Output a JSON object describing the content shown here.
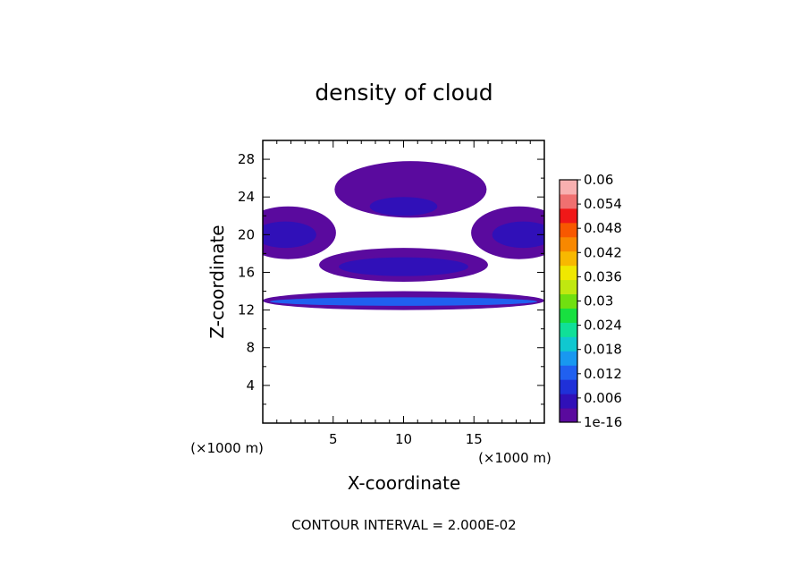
{
  "chart_data": {
    "type": "heatmap",
    "title": "density of cloud",
    "xlabel": "X-coordinate",
    "ylabel": "Z-coordinate",
    "x_unit": "(×1000 m)",
    "y_unit": "(×1000 m)",
    "xlim": [
      0,
      20
    ],
    "ylim": [
      0,
      30
    ],
    "x_ticks": [
      "5",
      "10",
      "15"
    ],
    "y_ticks": [
      "4",
      "8",
      "12",
      "16",
      "20",
      "24",
      "28"
    ],
    "footer": "CONTOUR INTERVAL = 2.000E-02",
    "colorbar": {
      "labels": [
        "0.06",
        "0.054",
        "0.048",
        "0.042",
        "0.036",
        "0.03",
        "0.024",
        "0.018",
        "0.012",
        "0.006",
        "1e-16"
      ],
      "colors": [
        "#5a0a9e",
        "#3010b8",
        "#1f30d8",
        "#2060f0",
        "#1898f0",
        "#10c8d0",
        "#10e098",
        "#18e040",
        "#70e010",
        "#c0e810",
        "#f0e800",
        "#f8b800",
        "#f88800",
        "#f85800",
        "#f01818",
        "#f07070",
        "#f8b0b0"
      ]
    },
    "regions": [
      {
        "name": "upper-dome",
        "cx": 10.5,
        "cz": 24.8,
        "rx": 5.4,
        "rz": 3.0,
        "level": 0.002
      },
      {
        "name": "upper-dome-core",
        "cx": 10.0,
        "cz": 23.0,
        "rx": 2.4,
        "rz": 1.0,
        "level": 0.005
      },
      {
        "name": "left-lobe",
        "cx": 1.8,
        "cz": 20.2,
        "rx": 3.4,
        "rz": 2.8,
        "level": 0.002
      },
      {
        "name": "left-lobe-core",
        "cx": 1.6,
        "cz": 20.0,
        "rx": 2.2,
        "rz": 1.4,
        "level": 0.007
      },
      {
        "name": "right-lobe",
        "cx": 18.2,
        "cz": 20.2,
        "rx": 3.4,
        "rz": 2.8,
        "level": 0.002
      },
      {
        "name": "right-lobe-core",
        "cx": 18.5,
        "cz": 20.0,
        "rx": 2.2,
        "rz": 1.4,
        "level": 0.007
      },
      {
        "name": "middle-band",
        "cx": 10.0,
        "cz": 16.8,
        "rx": 6.0,
        "rz": 1.8,
        "level": 0.002
      },
      {
        "name": "middle-band-core",
        "cx": 10.0,
        "cz": 16.6,
        "rx": 4.6,
        "rz": 1.0,
        "level": 0.007
      },
      {
        "name": "lower-band",
        "cx": 10.0,
        "cz": 13.0,
        "rx": 10.0,
        "rz": 1.0,
        "level": 0.003
      },
      {
        "name": "lower-band-core",
        "cx": 10.0,
        "cz": 12.9,
        "rx": 9.5,
        "rz": 0.45,
        "level": 0.012
      }
    ]
  }
}
